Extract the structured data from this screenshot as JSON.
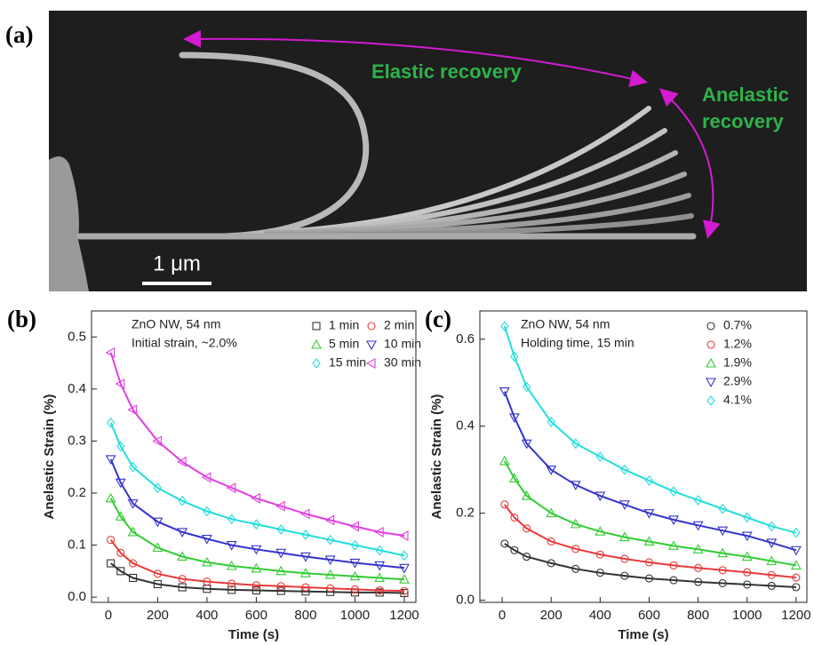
{
  "figure": {
    "panel_a": {
      "label": "(a)",
      "elastic_label": "Elastic recovery",
      "anelastic_label": [
        "Anelastic",
        "recovery"
      ],
      "scale_bar": "1 μm"
    }
  },
  "chart_data": [
    {
      "type": "line",
      "panel_label": "(b)",
      "annotations": [
        "ZnO NW, 54 nm",
        "Initial strain, ~2.0%"
      ],
      "x_label": "Time (s)",
      "y_label": "Anelastic Strain (%)",
      "x": [
        10,
        50,
        100,
        200,
        300,
        400,
        500,
        600,
        700,
        800,
        900,
        1000,
        1100,
        1200
      ],
      "xlim": [
        -68,
        1247
      ],
      "xticks": [
        0,
        200,
        400,
        600,
        800,
        1000,
        1200
      ],
      "ylim": [
        -0.01,
        0.55
      ],
      "yticks": [
        {
          "value": 0,
          "label": "0.0"
        },
        0.1,
        0.2,
        0.3,
        0.4,
        0.5
      ],
      "series": [
        {
          "name": "1 min",
          "color": "#333333",
          "marker": "square",
          "values": [
            0.065,
            0.05,
            0.037,
            0.025,
            0.019,
            0.016,
            0.014,
            0.013,
            0.012,
            0.011,
            0.01,
            0.009,
            0.009,
            0.008
          ]
        },
        {
          "name": "2 min",
          "color": "#e83a3a",
          "marker": "circle",
          "values": [
            0.11,
            0.085,
            0.065,
            0.045,
            0.035,
            0.03,
            0.026,
            0.023,
            0.021,
            0.019,
            0.017,
            0.015,
            0.013,
            0.012
          ]
        },
        {
          "name": "5 min",
          "color": "#33cc33",
          "marker": "triangle-up",
          "values": [
            0.19,
            0.155,
            0.125,
            0.095,
            0.078,
            0.067,
            0.06,
            0.055,
            0.05,
            0.046,
            0.043,
            0.04,
            0.037,
            0.034
          ]
        },
        {
          "name": "10 min",
          "color": "#3333cc",
          "marker": "triangle-down",
          "values": [
            0.265,
            0.22,
            0.18,
            0.145,
            0.125,
            0.112,
            0.1,
            0.092,
            0.085,
            0.078,
            0.072,
            0.066,
            0.061,
            0.056
          ]
        },
        {
          "name": "15 min",
          "color": "#22dddd",
          "marker": "diamond",
          "values": [
            0.335,
            0.29,
            0.25,
            0.21,
            0.185,
            0.165,
            0.15,
            0.14,
            0.13,
            0.12,
            0.11,
            0.1,
            0.09,
            0.08
          ]
        },
        {
          "name": "30 min",
          "color": "#e03ee0",
          "marker": "triangle-left",
          "values": [
            0.47,
            0.41,
            0.36,
            0.3,
            0.26,
            0.23,
            0.21,
            0.19,
            0.175,
            0.16,
            0.148,
            0.136,
            0.125,
            0.118
          ]
        }
      ]
    },
    {
      "type": "line",
      "panel_label": "(c)",
      "annotations": [
        "ZnO NW, 54 nm",
        "Holding time, 15 min"
      ],
      "x_label": "Time (s)",
      "y_label": "Anelastic Strain (%)",
      "x": [
        10,
        50,
        100,
        200,
        300,
        400,
        500,
        600,
        700,
        800,
        900,
        1000,
        1100,
        1200
      ],
      "xlim": [
        -91,
        1244
      ],
      "xticks": [
        0,
        200,
        400,
        600,
        800,
        1000,
        1200
      ],
      "ylim": [
        -0.005,
        0.665
      ],
      "yticks": [
        {
          "value": 0,
          "label": "0.0"
        },
        0.2,
        0.4,
        0.6
      ],
      "series": [
        {
          "name": "0.7%",
          "color": "#333333",
          "marker": "circle",
          "values": [
            0.13,
            0.115,
            0.1,
            0.085,
            0.072,
            0.063,
            0.056,
            0.05,
            0.046,
            0.042,
            0.039,
            0.036,
            0.033,
            0.03
          ]
        },
        {
          "name": "1.2%",
          "color": "#e83a3a",
          "marker": "circle",
          "values": [
            0.22,
            0.19,
            0.165,
            0.135,
            0.118,
            0.105,
            0.095,
            0.087,
            0.08,
            0.074,
            0.069,
            0.064,
            0.058,
            0.052
          ]
        },
        {
          "name": "1.9%",
          "color": "#33cc33",
          "marker": "triangle-up",
          "values": [
            0.32,
            0.28,
            0.24,
            0.2,
            0.175,
            0.158,
            0.145,
            0.135,
            0.125,
            0.117,
            0.108,
            0.1,
            0.09,
            0.08
          ]
        },
        {
          "name": "2.9%",
          "color": "#3333cc",
          "marker": "triangle-down",
          "values": [
            0.48,
            0.42,
            0.36,
            0.3,
            0.265,
            0.24,
            0.22,
            0.2,
            0.185,
            0.172,
            0.16,
            0.148,
            0.132,
            0.115
          ]
        },
        {
          "name": "4.1%",
          "color": "#22dddd",
          "marker": "diamond",
          "values": [
            0.63,
            0.56,
            0.49,
            0.41,
            0.36,
            0.33,
            0.3,
            0.275,
            0.25,
            0.23,
            0.21,
            0.19,
            0.17,
            0.155
          ]
        }
      ]
    }
  ]
}
